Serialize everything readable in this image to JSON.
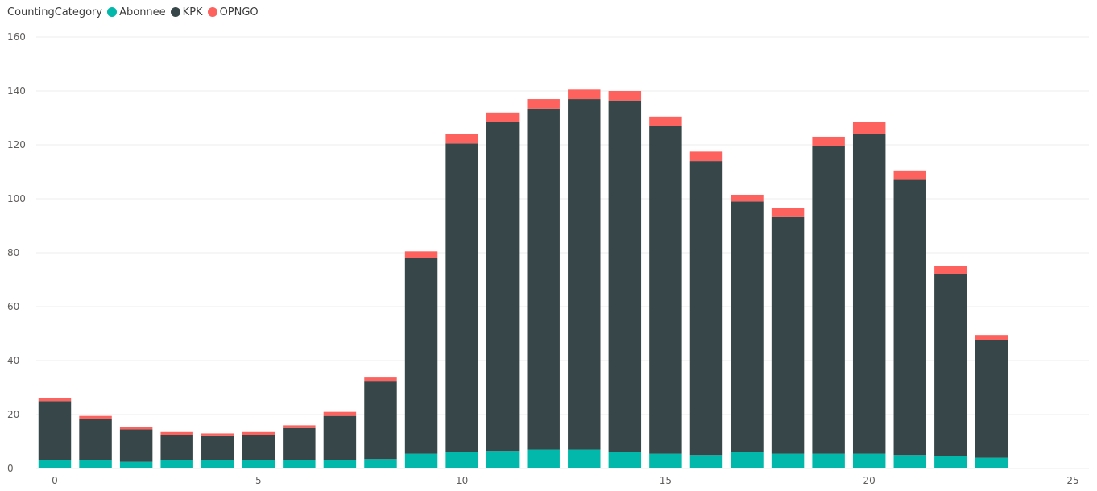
{
  "chart_data": {
    "type": "bar",
    "stacked": true,
    "legend_title": "CountingCategory",
    "legend_position": "top-left",
    "x": [
      0,
      1,
      2,
      3,
      4,
      5,
      6,
      7,
      8,
      9,
      10,
      11,
      12,
      13,
      14,
      15,
      16,
      17,
      18,
      19,
      20,
      21,
      22,
      23
    ],
    "series": [
      {
        "name": "Abonnee",
        "color": "#01b8aa",
        "values": [
          3,
          3,
          2.5,
          3,
          3,
          3,
          3,
          3,
          3.5,
          5.5,
          6,
          6.5,
          7,
          7,
          6,
          5.5,
          5,
          6,
          5.5,
          5.5,
          5.5,
          5,
          4.5,
          4
        ]
      },
      {
        "name": "KPK",
        "color": "#374649",
        "values": [
          22,
          15.5,
          12,
          9.5,
          9,
          9.5,
          12,
          16.5,
          29,
          72.5,
          114.5,
          122,
          126.5,
          130,
          130.5,
          121.5,
          109,
          93,
          88,
          114,
          118.5,
          102,
          67.5,
          43.5
        ]
      },
      {
        "name": "OPNGO",
        "color": "#fd625e",
        "values": [
          1,
          1,
          1,
          1,
          1,
          1,
          1,
          1.5,
          1.5,
          2.5,
          3.5,
          3.5,
          3.5,
          3.5,
          3.5,
          3.5,
          3.5,
          2.5,
          3,
          3.5,
          4.5,
          3.5,
          3,
          2
        ]
      }
    ],
    "xlim": [
      0,
      25
    ],
    "x_ticks": [
      0,
      5,
      10,
      15,
      20,
      25
    ],
    "ylim": [
      0,
      160
    ],
    "y_ticks": [
      0,
      20,
      40,
      60,
      80,
      100,
      120,
      140,
      160
    ],
    "grid": true,
    "title": "",
    "xlabel": "",
    "ylabel": ""
  }
}
